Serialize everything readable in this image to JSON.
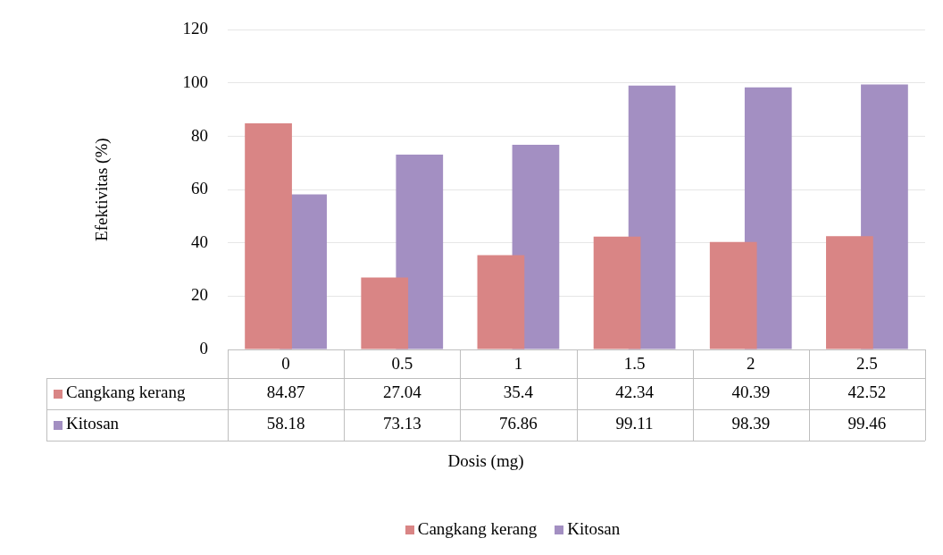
{
  "chart_data": {
    "type": "bar",
    "xlabel": "Dosis (mg)",
    "ylabel": "Efektivitas (%)",
    "categories": [
      "0",
      "0.5",
      "1",
      "1.5",
      "2",
      "2.5"
    ],
    "series": [
      {
        "name": "Cangkang kerang",
        "color": "#d98585",
        "values": [
          84.87,
          27.04,
          35.4,
          42.34,
          40.39,
          42.52
        ]
      },
      {
        "name": "Kitosan",
        "color": "#a38fc2",
        "values": [
          58.18,
          73.13,
          76.86,
          99.11,
          98.39,
          99.46
        ]
      }
    ],
    "ylim": [
      0,
      120
    ],
    "yticks": [
      0,
      20,
      40,
      60,
      80,
      100,
      120
    ],
    "grid": "y",
    "legend": "bottom",
    "data_labels": true
  }
}
